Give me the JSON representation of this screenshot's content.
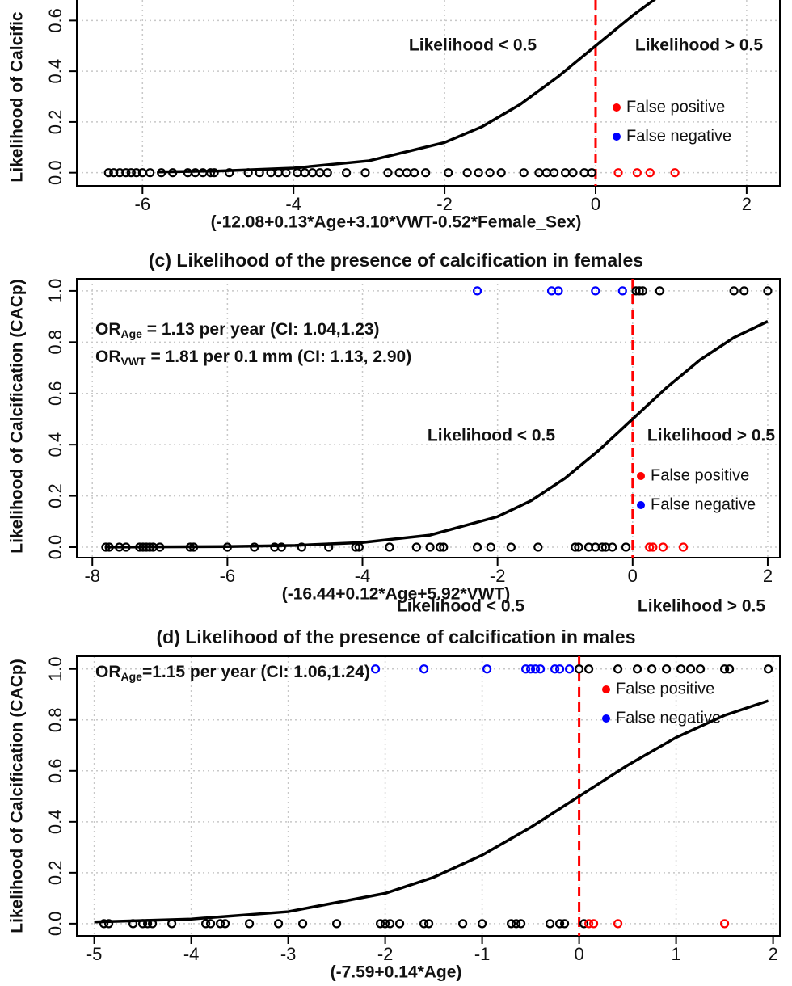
{
  "chart_data": [
    {
      "type": "scatter",
      "x_label": "(-12.08+0.13*Age+3.10*VWT-0.52*Female_Sex)",
      "y_label": "Likelihood of Calcific",
      "region_labels": [
        "Likelihood < 0.5",
        "Likelihood > 0.5"
      ],
      "xlim": [
        -6.87,
        2.44
      ],
      "ylim": [
        -0.052,
        0.7
      ],
      "xticks": [
        -6,
        -4,
        -2,
        0,
        2
      ],
      "yticks": [
        {
          "value": 0,
          "label": "0.0"
        },
        {
          "value": 0.2,
          "label": "0.2"
        },
        {
          "value": 0.4,
          "label": "0.4"
        },
        {
          "value": 0.6,
          "label": "0.6"
        }
      ],
      "grid": true,
      "threshold": 0,
      "threshold_color": "#ff0000",
      "series": [
        {
          "style": "line",
          "color": "#000000",
          "x": [
            -5.8,
            -5,
            -4,
            -3,
            -2,
            -1.5,
            -1,
            -0.5,
            0,
            0.5,
            1
          ],
          "values": [
            0.003,
            0.0067,
            0.018,
            0.047,
            0.119,
            0.182,
            0.269,
            0.378,
            0.5,
            0.622,
            0.731
          ]
        },
        {
          "style": "open-circle",
          "color": "#000000",
          "x": [
            -6.45,
            -6.38,
            -6.3,
            -6.22,
            -6.15,
            -6.08,
            -6.0,
            -5.9,
            -5.75,
            -5.6,
            -5.4,
            -5.3,
            -5.2,
            -5.1,
            -5.05,
            -4.85,
            -4.6,
            -4.45,
            -4.3,
            -4.2,
            -4.1,
            -3.95,
            -3.85,
            -3.75,
            -3.65,
            -3.55,
            -3.3,
            -3.05,
            -2.75,
            -2.6,
            -2.5,
            -2.4,
            -2.25,
            -1.95,
            -1.7,
            -1.55,
            -1.4,
            -1.25,
            -0.95,
            -0.75,
            -0.65,
            -0.55,
            -0.4,
            -0.3,
            -0.15,
            -0.05
          ],
          "values": [
            0,
            0,
            0,
            0,
            0,
            0,
            0,
            0,
            0,
            0,
            0,
            0,
            0,
            0,
            0,
            0,
            0,
            0,
            0,
            0,
            0,
            0,
            0,
            0,
            0,
            0,
            0,
            0,
            0,
            0,
            0,
            0,
            0,
            0,
            0,
            0,
            0,
            0,
            0,
            0,
            0,
            0,
            0,
            0,
            0,
            0
          ]
        },
        {
          "name": "False positive",
          "style": "open-circle",
          "color": "#ff0000",
          "x": [
            0.3,
            0.55,
            0.72,
            1.05
          ],
          "values": [
            0,
            0,
            0,
            0
          ]
        },
        {
          "name": "False negative",
          "style": "open-circle",
          "color": "#0000ff",
          "x": [],
          "values": []
        }
      ]
    },
    {
      "type": "scatter",
      "title": "(c) Likelihood of the presence of calcification in females",
      "x_label": "(-16.44+0.12*Age+5.92*VWT)",
      "y_label": "Likelihood of Calcification (CACp)",
      "region_labels": [
        "Likelihood < 0.5",
        "Likelihood > 0.5"
      ],
      "or_lines": [
        {
          "text": "OR",
          "sub": "Age",
          "rest": " = 1.13 per year (CI: 1.04,1.23)"
        },
        {
          "text": "OR",
          "sub": "VWT",
          "rest": " = 1.81 per 0.1 mm (CI: 1.13, 2.90)"
        }
      ],
      "xlim": [
        -8.23,
        2.18
      ],
      "ylim": [
        -0.041,
        1.047
      ],
      "xticks": [
        -8,
        -6,
        -4,
        -2,
        0,
        2
      ],
      "yticks": [
        {
          "value": 0,
          "label": "0.0"
        },
        {
          "value": 0.2,
          "label": "0.2"
        },
        {
          "value": 0.4,
          "label": "0.4"
        },
        {
          "value": 0.6,
          "label": "0.6"
        },
        {
          "value": 0.8,
          "label": "0.8"
        },
        {
          "value": 1,
          "label": "1.0"
        }
      ],
      "grid": true,
      "threshold": 0,
      "threshold_color": "#ff0000",
      "series": [
        {
          "style": "line",
          "color": "#000000",
          "x": [
            -7.8,
            -6,
            -5,
            -4,
            -3,
            -2,
            -1.5,
            -1,
            -0.5,
            0,
            0.5,
            1,
            1.5,
            2
          ],
          "values": [
            0.0004,
            0.0025,
            0.0067,
            0.018,
            0.047,
            0.119,
            0.182,
            0.269,
            0.378,
            0.5,
            0.622,
            0.731,
            0.818,
            0.881
          ]
        },
        {
          "style": "open-circle",
          "color": "#000000",
          "x": [
            -7.8,
            -7.75,
            -7.6,
            -7.5,
            -7.3,
            -7.25,
            -7.2,
            -7.15,
            -7.1,
            -7.0,
            -6.55,
            -6.5,
            -6.0,
            -5.6,
            -5.3,
            -5.2,
            -4.9,
            -4.5,
            -4.1,
            -4.05,
            -3.6,
            -3.2,
            -3.0,
            -2.85,
            -2.8,
            -2.3,
            -2.1,
            -1.8,
            -1.4,
            -0.85,
            -0.8,
            -0.65,
            -0.55,
            -0.45,
            -0.4,
            -0.3,
            -0.1,
            0.05,
            0.1,
            0.15,
            0.4,
            1.5,
            1.65,
            2.0
          ],
          "values": [
            0,
            0,
            0,
            0,
            0,
            0,
            0,
            0,
            0,
            0,
            0,
            0,
            0,
            0,
            0,
            0,
            0,
            0,
            0,
            0,
            0,
            0,
            0,
            0,
            0,
            0,
            0,
            0,
            0,
            0,
            0,
            0,
            0,
            0,
            0,
            0,
            0,
            1,
            1,
            1,
            1,
            1,
            1,
            1
          ]
        },
        {
          "name": "False positive",
          "style": "open-circle",
          "color": "#ff0000",
          "x": [
            0.25,
            0.3,
            0.45,
            0.75
          ],
          "values": [
            0,
            0,
            0,
            0
          ]
        },
        {
          "name": "False negative",
          "style": "open-circle",
          "color": "#0000ff",
          "x": [
            -2.3,
            -1.2,
            -1.1,
            -0.55,
            -0.15
          ],
          "values": [
            1,
            1,
            1,
            1,
            1
          ]
        }
      ]
    },
    {
      "type": "scatter",
      "title": "(d) Likelihood of the presence of calcification in males",
      "x_label": "(-7.59+0.14*Age)",
      "y_label": "Likelihood of Calcification (CACp)",
      "region_labels": [
        "Likelihood < 0.5",
        "Likelihood > 0.5"
      ],
      "or_lines": [
        {
          "text": "OR",
          "sub": "Age",
          "rest": "=1.15 per year (CI: 1.06,1.24)"
        }
      ],
      "xlim": [
        -5.18,
        2.07
      ],
      "ylim": [
        -0.048,
        1.05
      ],
      "xticks": [
        -5,
        -4,
        -3,
        -2,
        -1,
        0,
        1,
        2
      ],
      "yticks": [
        {
          "value": 0,
          "label": "0.0"
        },
        {
          "value": 0.2,
          "label": "0.2"
        },
        {
          "value": 0.4,
          "label": "0.4"
        },
        {
          "value": 0.6,
          "label": "0.6"
        },
        {
          "value": 0.8,
          "label": "0.8"
        },
        {
          "value": 1,
          "label": "1.0"
        }
      ],
      "grid": true,
      "threshold": 0,
      "threshold_color": "#ff0000",
      "series": [
        {
          "style": "line",
          "color": "#000000",
          "x": [
            -5,
            -4,
            -3,
            -2,
            -1.5,
            -1,
            -0.5,
            0,
            0.5,
            1,
            1.5,
            1.95
          ],
          "values": [
            0.0067,
            0.018,
            0.047,
            0.119,
            0.182,
            0.269,
            0.378,
            0.5,
            0.622,
            0.731,
            0.818,
            0.875
          ]
        },
        {
          "style": "open-circle",
          "color": "#000000",
          "x": [
            -4.9,
            -4.85,
            -4.6,
            -4.5,
            -4.45,
            -4.4,
            -4.2,
            -3.85,
            -3.8,
            -3.7,
            -3.65,
            -3.4,
            -3.1,
            -2.85,
            -2.5,
            -2.05,
            -2.0,
            -1.95,
            -1.85,
            -1.6,
            -1.55,
            -1.2,
            -1.0,
            -0.7,
            -0.65,
            -0.6,
            -0.3,
            -0.2,
            -0.15,
            0.05,
            0,
            0.1,
            0.4,
            0.6,
            0.75,
            0.9,
            1.05,
            1.15,
            1.25,
            1.5,
            1.55,
            1.95
          ],
          "values": [
            0,
            0,
            0,
            0,
            0,
            0,
            0,
            0,
            0,
            0,
            0,
            0,
            0,
            0,
            0,
            0,
            0,
            0,
            0,
            0,
            0,
            0,
            0,
            0,
            0,
            0,
            0,
            0,
            0,
            0,
            1,
            1,
            1,
            1,
            1,
            1,
            1,
            1,
            1,
            1,
            1,
            1
          ]
        },
        {
          "name": "False positive",
          "style": "open-circle",
          "color": "#ff0000",
          "x": [
            0.1,
            0.15,
            0.4,
            1.5
          ],
          "values": [
            0,
            0,
            0,
            0
          ]
        },
        {
          "name": "False negative",
          "style": "open-circle",
          "color": "#0000ff",
          "x": [
            -2.1,
            -1.6,
            -0.95,
            -0.55,
            -0.5,
            -0.45,
            -0.4,
            -0.25,
            -0.2,
            -0.1
          ],
          "values": [
            1,
            1,
            1,
            1,
            1,
            1,
            1,
            1,
            1,
            1
          ]
        }
      ]
    }
  ]
}
